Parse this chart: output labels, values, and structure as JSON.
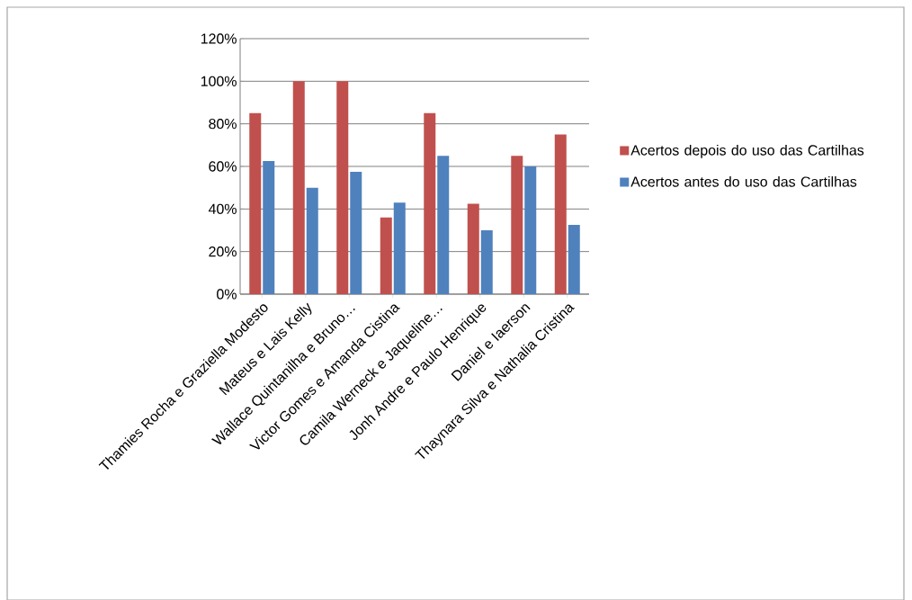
{
  "chart_data": {
    "type": "bar",
    "categories": [
      "Thamies Rocha e Graziella Modesto",
      "Mateus e Lais Kelly",
      "Wallace Quintanilha e Bruno…",
      "Victor Gomes e Amanda Cistina",
      "Camila Werneck e Jaqueline…",
      "Jonh Andre e Paulo Henrique",
      "Daniel e Iaerson",
      "Thaynara Silva e Nathalia Cristina"
    ],
    "series": [
      {
        "name": "Acertos depois do uso das Cartilhas",
        "color": "#c0504d",
        "values": [
          85,
          100,
          100,
          36,
          85,
          42.5,
          65,
          75
        ]
      },
      {
        "name": "Acertos antes do uso das Cartilhas",
        "color": "#4f81bd",
        "values": [
          62.5,
          50,
          57.5,
          43,
          65,
          30,
          60,
          32.5
        ]
      }
    ],
    "ylim": [
      0,
      120
    ],
    "yticks": [
      {
        "value": 0,
        "label": "0%"
      },
      {
        "value": 20,
        "label": "20%"
      },
      {
        "value": 40,
        "label": "40%"
      },
      {
        "value": 60,
        "label": "60%"
      },
      {
        "value": 80,
        "label": "80%"
      },
      {
        "value": 100,
        "label": "100%"
      },
      {
        "value": 120,
        "label": "120%"
      }
    ],
    "grid": "y",
    "legend": "right"
  }
}
